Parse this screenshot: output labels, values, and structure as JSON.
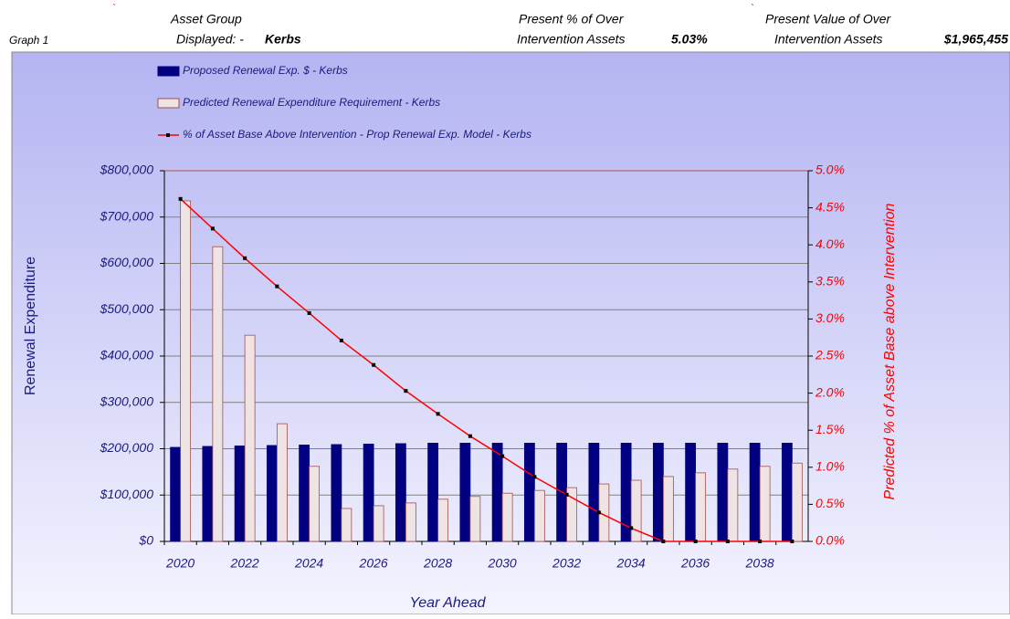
{
  "header": {
    "graph": "Graph  1",
    "group_label_1": "Asset Group",
    "group_label_2": "Displayed: - ",
    "group_value": "Kerbs",
    "pct_label_1": "Present % of Over",
    "pct_label_2": "Intervention Assets",
    "pct_value": "5.03%",
    "val_label_1": "Present Value of Over",
    "val_label_2": "Intervention Assets",
    "val_value": "$1,965,455"
  },
  "chart_data": {
    "type": "bar",
    "xlabel": "Year Ahead",
    "ylabel": "Renewal Expenditure",
    "y2label": "Predicted % of Asset Base above Intervention",
    "categories": [
      "2020",
      null,
      "2022",
      null,
      "2024",
      null,
      "2026",
      null,
      "2028",
      null,
      "2030",
      null,
      "2032",
      null,
      "2034",
      null,
      "2036",
      null,
      "2038",
      null
    ],
    "series": [
      {
        "name": "Proposed Renewal Exp. $ -  Kerbs",
        "color": "#000080",
        "values": [
          203000,
          205000,
          206000,
          207000,
          208000,
          209000,
          210000,
          211000,
          212000,
          212000,
          212000,
          212000,
          212000,
          212000,
          212000,
          212000,
          212000,
          212000,
          212000,
          212000
        ]
      },
      {
        "name": "Predicted Renewal Expenditure Requirement -  Kerbs",
        "color": "#efe4e4",
        "values": [
          735000,
          636000,
          445000,
          254000,
          162000,
          71000,
          77000,
          83000,
          91000,
          97000,
          104000,
          110000,
          116000,
          124000,
          132000,
          140000,
          148000,
          156000,
          162000,
          169000
        ]
      },
      {
        "name": "% of Asset Base Above Intervention - Prop Renewal Exp. Model -  Kerbs",
        "color": "#ff0000",
        "type": "line",
        "axis": "y2",
        "values": [
          4.62,
          4.22,
          3.82,
          3.44,
          3.08,
          2.71,
          2.38,
          2.03,
          1.72,
          1.42,
          1.15,
          0.87,
          0.63,
          0.39,
          0.18,
          0,
          0,
          0,
          0,
          0
        ]
      }
    ],
    "ylim": [
      0,
      800000
    ],
    "yticks": [
      {
        "value": 0,
        "label": "$0"
      },
      {
        "value": 100000,
        "label": "$100,000"
      },
      {
        "value": 200000,
        "label": "$200,000"
      },
      {
        "value": 300000,
        "label": "$300,000"
      },
      {
        "value": 400000,
        "label": "$400,000"
      },
      {
        "value": 500000,
        "label": "$500,000"
      },
      {
        "value": 600000,
        "label": "$600,000"
      },
      {
        "value": 700000,
        "label": "$700,000"
      },
      {
        "value": 800000,
        "label": "$800,000"
      }
    ],
    "y2lim": [
      0,
      5
    ],
    "y2ticks": [
      {
        "value": 0,
        "label": "0.0%"
      },
      {
        "value": 0.5,
        "label": "0.5%"
      },
      {
        "value": 1,
        "label": "1.0%"
      },
      {
        "value": 1.5,
        "label": "1.5%"
      },
      {
        "value": 2,
        "label": "2.0%"
      },
      {
        "value": 2.5,
        "label": "2.5%"
      },
      {
        "value": 3,
        "label": "3.0%"
      },
      {
        "value": 3.5,
        "label": "3.5%"
      },
      {
        "value": 4,
        "label": "4.0%"
      },
      {
        "value": 4.5,
        "label": "4.5%"
      },
      {
        "value": 5,
        "label": "5.0%"
      }
    ],
    "grid": true
  }
}
